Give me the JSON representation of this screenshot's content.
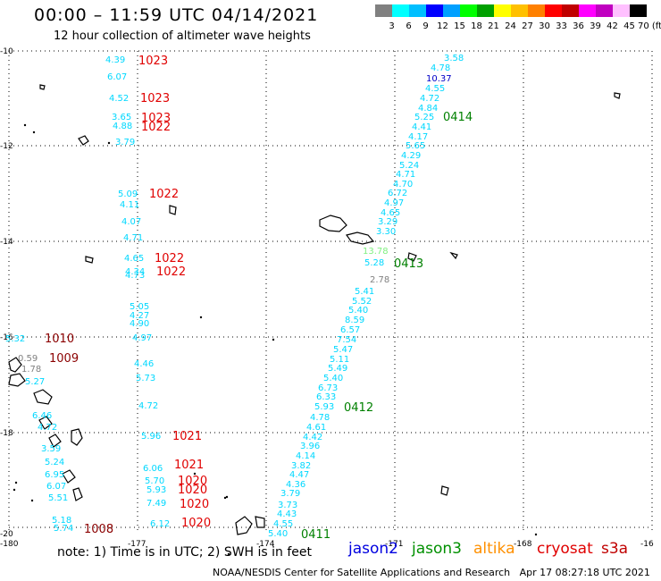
{
  "header": {
    "title": "00:00 – 11:59 UTC 04/14/2021",
    "subtitle": "12 hour collection of altimeter wave heights"
  },
  "colorbar": {
    "colors": [
      "#808080",
      "#00ffff",
      "#00bfff",
      "#0000ff",
      "#00a0ff",
      "#00ff00",
      "#00a000",
      "#ffff00",
      "#ffc000",
      "#ff8000",
      "#ff0000",
      "#c00000",
      "#ff00ff",
      "#c000c0",
      "#ffc0ff",
      "#000000"
    ],
    "labels": [
      "3",
      "6",
      "9",
      "12",
      "15",
      "18",
      "21",
      "24",
      "27",
      "30",
      "33",
      "36",
      "39",
      "42",
      "45",
      "70 (ft)"
    ]
  },
  "axes": {
    "lat_labels": [
      "-10",
      "-12",
      "-14",
      "-16",
      "-18",
      "-20"
    ],
    "lon_labels": [
      "-180",
      "-177",
      "-174",
      "-171",
      "-168",
      "-16"
    ]
  },
  "wave_heights": [
    {
      "v": "3.58",
      "c": "#00d8ff"
    },
    {
      "v": "4.78",
      "c": "#00d8ff"
    },
    {
      "v": "10.37",
      "c": "#0000c8"
    },
    {
      "v": "4.55",
      "c": "#00d8ff"
    },
    {
      "v": "4.72",
      "c": "#00d8ff"
    },
    {
      "v": "4.84",
      "c": "#00d8ff"
    },
    {
      "v": "5.25",
      "c": "#00d8ff"
    },
    {
      "v": "4.41",
      "c": "#00d8ff"
    },
    {
      "v": "4.17",
      "c": "#00d8ff"
    },
    {
      "v": "5.65",
      "c": "#00d8ff"
    },
    {
      "v": "4.29",
      "c": "#00d8ff"
    },
    {
      "v": "5.24",
      "c": "#00d8ff"
    },
    {
      "v": "4.71",
      "c": "#00d8ff"
    },
    {
      "v": "4.70",
      "c": "#00d8ff"
    },
    {
      "v": "6.72",
      "c": "#00d8ff"
    },
    {
      "v": "4.97",
      "c": "#00d8ff"
    },
    {
      "v": "4.65",
      "c": "#00d8ff"
    },
    {
      "v": "3.29",
      "c": "#00d8ff"
    },
    {
      "v": "3.30",
      "c": "#00d8ff"
    },
    {
      "v": "13.78",
      "c": "#80f080"
    },
    {
      "v": "5.28",
      "c": "#00d8ff"
    },
    {
      "v": "2.78",
      "c": "#808080"
    },
    {
      "v": "5.41",
      "c": "#00d8ff"
    },
    {
      "v": "5.52",
      "c": "#00d8ff"
    },
    {
      "v": "5.40",
      "c": "#00d8ff"
    },
    {
      "v": "8.59",
      "c": "#00d8ff"
    },
    {
      "v": "6.57",
      "c": "#00d8ff"
    },
    {
      "v": "7.54",
      "c": "#00d8ff"
    },
    {
      "v": "5.47",
      "c": "#00d8ff"
    },
    {
      "v": "5.11",
      "c": "#00d8ff"
    },
    {
      "v": "5.49",
      "c": "#00d8ff"
    },
    {
      "v": "5.40",
      "c": "#00d8ff"
    },
    {
      "v": "6.73",
      "c": "#00d8ff"
    },
    {
      "v": "6.33",
      "c": "#00d8ff"
    },
    {
      "v": "5.93",
      "c": "#00d8ff"
    },
    {
      "v": "4.78",
      "c": "#00d8ff"
    },
    {
      "v": "4.61",
      "c": "#00d8ff"
    },
    {
      "v": "4.42",
      "c": "#00d8ff"
    },
    {
      "v": "3.96",
      "c": "#00d8ff"
    },
    {
      "v": "4.14",
      "c": "#00d8ff"
    },
    {
      "v": "3.82",
      "c": "#00d8ff"
    },
    {
      "v": "4.47",
      "c": "#00d8ff"
    },
    {
      "v": "4.36",
      "c": "#00d8ff"
    },
    {
      "v": "3.79",
      "c": "#00d8ff"
    },
    {
      "v": "3.73",
      "c": "#00d8ff"
    },
    {
      "v": "4.43",
      "c": "#00d8ff"
    },
    {
      "v": "4.55",
      "c": "#00d8ff"
    },
    {
      "v": "5.40",
      "c": "#00d8ff"
    },
    {
      "v": "4.39",
      "c": "#00d8ff"
    },
    {
      "v": "6.07",
      "c": "#00d8ff"
    },
    {
      "v": "4.52",
      "c": "#00d8ff"
    },
    {
      "v": "3.65",
      "c": "#00d8ff"
    },
    {
      "v": "4.88",
      "c": "#00d8ff"
    },
    {
      "v": "3.79",
      "c": "#00d8ff"
    },
    {
      "v": "5.09",
      "c": "#00d8ff"
    },
    {
      "v": "4.11",
      "c": "#00d8ff"
    },
    {
      "v": "4.07",
      "c": "#00d8ff"
    },
    {
      "v": "4.71",
      "c": "#00d8ff"
    },
    {
      "v": "4.65",
      "c": "#00d8ff"
    },
    {
      "v": "4.34",
      "c": "#00d8ff"
    },
    {
      "v": "4.73",
      "c": "#00d8ff"
    },
    {
      "v": "5.05",
      "c": "#00d8ff"
    },
    {
      "v": "4.27",
      "c": "#00d8ff"
    },
    {
      "v": "4.90",
      "c": "#00d8ff"
    },
    {
      "v": "4.97",
      "c": "#00d8ff"
    },
    {
      "v": "4.46",
      "c": "#00d8ff"
    },
    {
      "v": "5.73",
      "c": "#00d8ff"
    },
    {
      "v": "4.72",
      "c": "#00d8ff"
    },
    {
      "v": "5.96",
      "c": "#00d8ff"
    },
    {
      "v": "6.06",
      "c": "#00d8ff"
    },
    {
      "v": "5.70",
      "c": "#00d8ff"
    },
    {
      "v": "5.93",
      "c": "#00d8ff"
    },
    {
      "v": "7.49",
      "c": "#00d8ff"
    },
    {
      "v": "6.12",
      "c": "#00d8ff"
    },
    {
      "v": "5.32",
      "c": "#00d8ff"
    },
    {
      "v": "0.59",
      "c": "#808080"
    },
    {
      "v": "1.78",
      "c": "#808080"
    },
    {
      "v": "5.27",
      "c": "#00d8ff"
    },
    {
      "v": "6.46",
      "c": "#00d8ff"
    },
    {
      "v": "4.72",
      "c": "#00d8ff"
    },
    {
      "v": "3.59",
      "c": "#00d8ff"
    },
    {
      "v": "5.24",
      "c": "#00d8ff"
    },
    {
      "v": "6.95",
      "c": "#00d8ff"
    },
    {
      "v": "6.07",
      "c": "#00d8ff"
    },
    {
      "v": "5.51",
      "c": "#00d8ff"
    },
    {
      "v": "5.18",
      "c": "#00d8ff"
    },
    {
      "v": "5.74",
      "c": "#00d8ff"
    },
    {
      "v": "5.39",
      "c": "#00d8ff"
    }
  ],
  "time_labels": [
    {
      "v": "1023",
      "c": "#e00000"
    },
    {
      "v": "1023",
      "c": "#e00000"
    },
    {
      "v": "1023",
      "c": "#e00000"
    },
    {
      "v": "1022",
      "c": "#e00000"
    },
    {
      "v": "1022",
      "c": "#e00000"
    },
    {
      "v": "1022",
      "c": "#e00000"
    },
    {
      "v": "1022",
      "c": "#e00000"
    },
    {
      "v": "1021",
      "c": "#e00000"
    },
    {
      "v": "1021",
      "c": "#e00000"
    },
    {
      "v": "1020",
      "c": "#e00000"
    },
    {
      "v": "1020",
      "c": "#e00000"
    },
    {
      "v": "1020",
      "c": "#e00000"
    },
    {
      "v": "1020",
      "c": "#e00000"
    },
    {
      "v": "1010",
      "c": "#8b0000"
    },
    {
      "v": "1009",
      "c": "#8b0000"
    },
    {
      "v": "1008",
      "c": "#8b0000"
    },
    {
      "v": "0414",
      "c": "#008000"
    },
    {
      "v": "0413",
      "c": "#008000"
    },
    {
      "v": "0412",
      "c": "#008000"
    },
    {
      "v": "0411",
      "c": "#008000"
    }
  ],
  "footer": {
    "note": "note: 1) Time is in UTC; 2) SWH is in feet",
    "satellites": [
      {
        "name": "jason2",
        "color": "#0000e0"
      },
      {
        "name": "jason3",
        "color": "#009000"
      },
      {
        "name": "altika",
        "color": "#ff9000"
      },
      {
        "name": "cryosat",
        "color": "#e00000"
      },
      {
        "name": "s3a",
        "color": "#c00000"
      }
    ],
    "credit": "NOAA/NESDIS Center for Satellite Applications and Research   Apr 17 08:27:18 UTC 2021"
  }
}
